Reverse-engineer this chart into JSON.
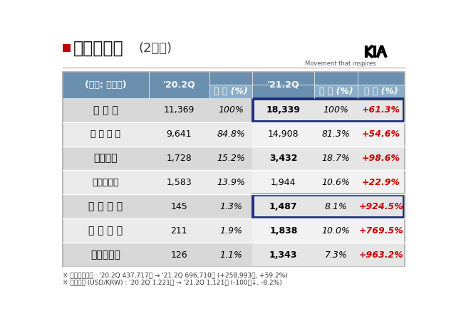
{
  "title_main": "손익계산서",
  "title_sub": "(2분기)",
  "title_icon": "■",
  "bg_color": "#ffffff",
  "header_bg1": "#6b8faf",
  "header_bg2": "#8aaec9",
  "row_bg_even": "#d8d8d8",
  "row_bg_odd": "#ebebeb",
  "row_bg_right_even": "#e5e5e5",
  "row_bg_right_odd": "#f2f2f2",
  "highlight_border": "#1e2d7d",
  "columns_top": [
    "(단위: 십억원)",
    "'20.2Q",
    "",
    "'21.2Q",
    "",
    ""
  ],
  "columns_bot": [
    "",
    "",
    "비 중 (%)",
    "",
    "비 중 (%)",
    "증 감 (%)"
  ],
  "rows": [
    {
      "label": "매 출 액",
      "bold": true,
      "v20": "11,369",
      "p20": "100%",
      "v21": "18,339",
      "p21": "100%",
      "chg": "+61.3%",
      "highlight": true,
      "label_bold": true
    },
    {
      "label": "매 출 원 가",
      "bold": false,
      "v20": "9,641",
      "p20": "84.8%",
      "v21": "14,908",
      "p21": "81.3%",
      "chg": "+54.6%",
      "highlight": false,
      "label_bold": false
    },
    {
      "label": "매출어익",
      "bold": true,
      "v20": "1,728",
      "p20": "15.2%",
      "v21": "3,432",
      "p21": "18.7%",
      "chg": "+98.6%",
      "highlight": false,
      "label_bold": true
    },
    {
      "label": "판매관리비",
      "bold": false,
      "v20": "1,583",
      "p20": "13.9%",
      "v21": "1,944",
      "p21": "10.6%",
      "chg": "+22.9%",
      "highlight": false,
      "label_bold": false
    },
    {
      "label": "영 업 이 익",
      "bold": true,
      "v20": "145",
      "p20": "1.3%",
      "v21": "1,487",
      "p21": "8.1%",
      "chg": "+924.5%",
      "highlight": true,
      "label_bold": true
    },
    {
      "label": "세 전 이 익",
      "bold": true,
      "v20": "211",
      "p20": "1.9%",
      "v21": "1,838",
      "p21": "10.0%",
      "chg": "+769.5%",
      "highlight": false,
      "label_bold": true
    },
    {
      "label": "당기순이익",
      "bold": true,
      "v20": "126",
      "p20": "1.1%",
      "v21": "1,343",
      "p21": "7.3%",
      "chg": "+963.2%",
      "highlight": false,
      "label_bold": true
    }
  ],
  "footnote1": "※ 연결매출대수 : '20.2Q 437,717대 → '21.2Q 696,710대 (+258,993대, +59.2%)",
  "footnote2": "※ 평균환율 (USD/KRW) : '20.2Q 1,221원 → '21.2Q 1,121원 (-100원↓, -8.2%)"
}
